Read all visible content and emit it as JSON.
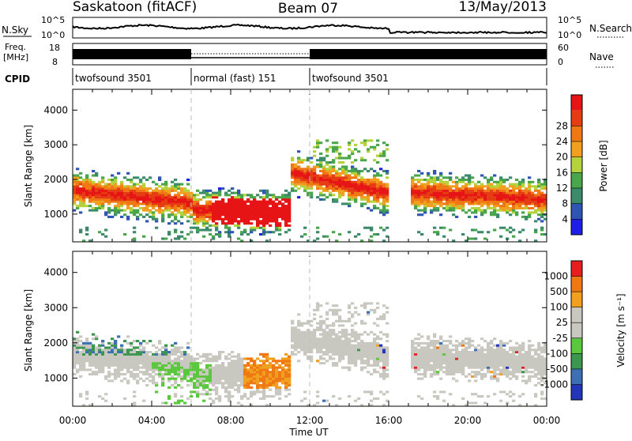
{
  "header": {
    "station": "Saskatoon (fitACF)",
    "beam": "Beam 07",
    "date": "13/May/2013"
  },
  "noise_panel": {
    "left_label": "N.Sky",
    "right_label": "N.Search",
    "left_ticks": [
      "10^5",
      "10^0"
    ],
    "right_ticks": [
      "10^5",
      "10^0"
    ]
  },
  "freq_panel": {
    "left_label_1": "Freq.",
    "left_label_2": "[MHz]",
    "right_label": "Nave",
    "left_ticks": [
      "18",
      "8"
    ],
    "right_ticks": [
      "60",
      "0"
    ]
  },
  "cpid_panel": {
    "label": "CPID",
    "segments": [
      {
        "name": "twofsound 3501",
        "start_h": 0,
        "end_h": 6
      },
      {
        "name": "normal (fast) 151",
        "start_h": 6,
        "end_h": 12
      },
      {
        "name": "twofsound 3501",
        "start_h": 12,
        "end_h": 24
      }
    ]
  },
  "colors": {
    "power_scale": [
      "#1e1ee6",
      "#2f55b4",
      "#3b8a6a",
      "#49a64a",
      "#b4d23c",
      "#f0a01e",
      "#f07814",
      "#e63c14",
      "#e61414"
    ],
    "velocity_scale": [
      "#2336b9",
      "#3c6fb4",
      "#3c9650",
      "#5ac83c",
      "#c8c8c0",
      "#c8c8c0",
      "#f0a01e",
      "#f07814",
      "#e61e1e"
    ],
    "ground_scatter": "#c8c8c0"
  },
  "chart_data": [
    {
      "type": "heatmap",
      "name": "power",
      "ylabel": "Slant Range [km]",
      "xlabel": "Time UT",
      "colorbar_label": "Power [dB]",
      "colorbar_ticks": [
        "4",
        "8",
        "12",
        "16",
        "20",
        "24",
        "28"
      ],
      "x_ticks": [
        "00:00",
        "04:00",
        "08:00",
        "12:00",
        "16:00",
        "20:00",
        "00:00"
      ],
      "y_ticks": [
        "1000",
        "2000",
        "3000",
        "4000"
      ],
      "xlim_hours": [
        0,
        24
      ],
      "ylim_km": [
        200,
        4600
      ],
      "mode_boundaries_h": [
        6,
        12
      ],
      "data_gap_h": [
        16,
        17
      ]
    },
    {
      "type": "heatmap",
      "name": "velocity",
      "ylabel": "Slant Range [km]",
      "xlabel": "Time UT",
      "colorbar_label": "Velocity [m s⁻¹]",
      "colorbar_ticks": [
        "1000",
        "500",
        "100",
        "25",
        "-25",
        "-100",
        "-500",
        "-1000"
      ],
      "x_ticks": [
        "00:00",
        "04:00",
        "08:00",
        "12:00",
        "16:00",
        "20:00",
        "00:00"
      ],
      "y_ticks": [
        "1000",
        "2000",
        "3000",
        "4000"
      ],
      "xlim_hours": [
        0,
        24
      ],
      "ylim_km": [
        200,
        4600
      ],
      "mode_boundaries_h": [
        6,
        12
      ],
      "data_gap_h": [
        16,
        17
      ]
    }
  ]
}
